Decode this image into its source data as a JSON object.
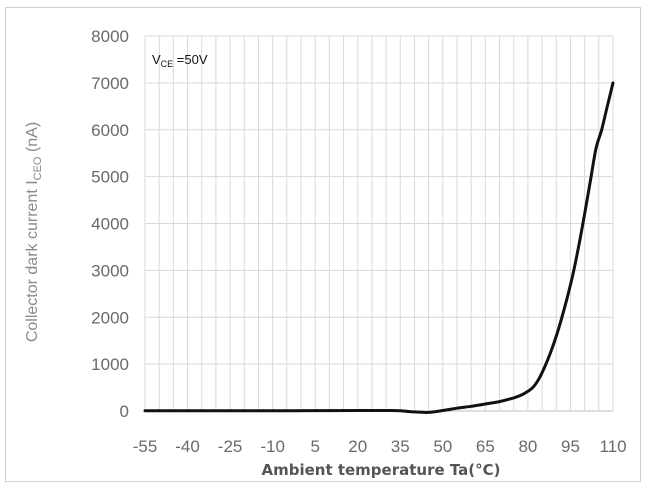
{
  "chart_data": {
    "type": "line",
    "title": "",
    "xlabel": "Ambient temperature Ta(°C)",
    "ylabel": "Collector dark current I",
    "ylabel_sub": "CEO",
    "ylabel_unit": " (nA)",
    "annotation": {
      "main": "V",
      "sub": "CE",
      "rest": " =50V"
    },
    "x_categories": [
      "-55",
      "-40",
      "-25",
      "-10",
      "5",
      "20",
      "35",
      "50",
      "65",
      "80",
      "95",
      "110"
    ],
    "xlim": [
      -55,
      110
    ],
    "y_ticks": [
      0,
      1000,
      2000,
      3000,
      4000,
      5000,
      6000,
      7000,
      8000
    ],
    "ylim": [
      0,
      8000
    ],
    "grid": true,
    "series": [
      {
        "color": "#111111",
        "x": [
          -55,
          -40,
          -25,
          -10,
          5,
          20,
          30,
          35,
          40,
          45,
          50,
          55,
          60,
          65,
          70,
          75,
          78,
          80,
          82,
          84,
          86,
          88,
          90,
          92,
          94,
          96,
          98,
          100,
          102,
          104,
          106,
          108,
          110
        ],
        "y": [
          5,
          5,
          5,
          5,
          8,
          10,
          10,
          5,
          -20,
          -30,
          10,
          60,
          100,
          150,
          200,
          280,
          350,
          420,
          520,
          700,
          950,
          1250,
          1600,
          2000,
          2450,
          2950,
          3550,
          4200,
          4900,
          5600,
          6000,
          6500,
          7000
        ]
      }
    ]
  }
}
